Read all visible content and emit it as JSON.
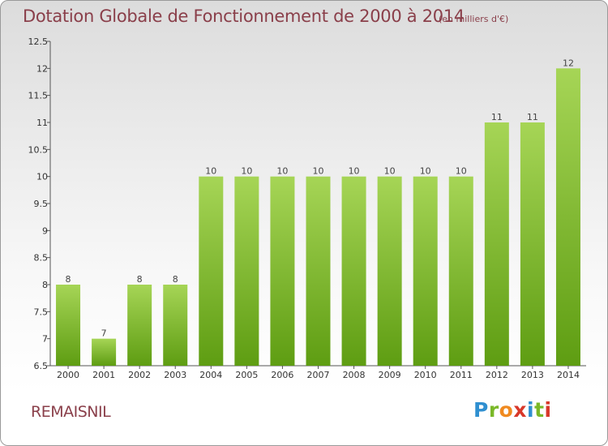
{
  "header": {
    "title": "Dotation Globale de Fonctionnement de 2000 à 2014",
    "unit": "(en milliers d'€)"
  },
  "footer": {
    "commune": "REMAISNIL",
    "logo_text": "Proxiti"
  },
  "colors": {
    "bar_light": "#a6d556",
    "bar_dark": "#5e9d12",
    "title": "#8a3f4a"
  },
  "chart_data": {
    "type": "bar",
    "title": "Dotation Globale de Fonctionnement de 2000 à 2014",
    "subtitle": "(en milliers d'€)",
    "xlabel": "",
    "ylabel": "",
    "categories": [
      "2000",
      "2001",
      "2002",
      "2003",
      "2004",
      "2005",
      "2006",
      "2007",
      "2008",
      "2009",
      "2010",
      "2011",
      "2012",
      "2013",
      "2014"
    ],
    "values": [
      8,
      7,
      8,
      8,
      10,
      10,
      10,
      10,
      10,
      10,
      10,
      10,
      11,
      11,
      12
    ],
    "value_labels": [
      "8",
      "7",
      "8",
      "8",
      "10",
      "10",
      "10",
      "10",
      "10",
      "10",
      "10",
      "10",
      "11",
      "11",
      "12"
    ],
    "ylim": [
      6.5,
      12.5
    ],
    "yticks": [
      6.5,
      7,
      7.5,
      8,
      8.5,
      9,
      9.5,
      10,
      10.5,
      11,
      11.5,
      12,
      12.5
    ],
    "ytick_labels": [
      "6.5",
      "7",
      "7.5",
      "8",
      "8.5",
      "9",
      "9.5",
      "10",
      "10.5",
      "11",
      "11.5",
      "12",
      "12.5"
    ],
    "grid": false,
    "legend": "none"
  }
}
